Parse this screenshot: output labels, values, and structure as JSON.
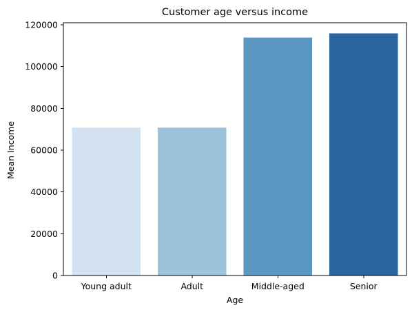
{
  "chart_data": {
    "type": "bar",
    "title": "Customer age versus income",
    "xlabel": "Age",
    "ylabel": "Mean Income",
    "categories": [
      "Young adult",
      "Adult",
      "Middle-aged",
      "Senior"
    ],
    "values": [
      70800,
      70800,
      113900,
      115900
    ],
    "colors": [
      "#d3e2f1",
      "#9dc3da",
      "#5b98c1",
      "#2b66a0"
    ],
    "ylim": [
      0,
      121000
    ],
    "yticks": [
      0,
      20000,
      40000,
      60000,
      80000,
      100000,
      120000
    ],
    "ytick_labels": [
      "0",
      "20000",
      "40000",
      "60000",
      "80000",
      "100000",
      "120000"
    ],
    "grid": false,
    "legend": "none"
  }
}
